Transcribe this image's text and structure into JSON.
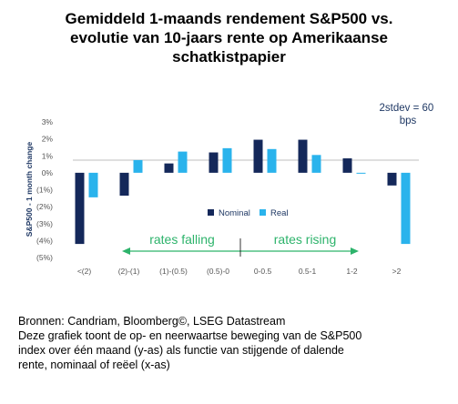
{
  "title": {
    "lines": [
      "Gemiddeld 1-maands rendement S&P500 vs.",
      "evolutie van 10-jaars rente op Amerikaanse",
      "schatkistpapier"
    ]
  },
  "colors": {
    "nominal": "#14285a",
    "real": "#2ab3ec",
    "arrow": "#2db36b",
    "axis_text": "#1f3864",
    "tick_text": "#555555"
  },
  "chart_data": {
    "type": "bar",
    "categories": [
      "<(2)",
      "(2)-(1)",
      "(1)-(0.5)",
      "(0.5)-0",
      "0-0.5",
      "0.5-1",
      "1-2",
      ">2"
    ],
    "series": [
      {
        "name": "Nominal",
        "values": [
          -4.2,
          -1.35,
          0.55,
          1.2,
          1.95,
          1.95,
          0.85,
          -0.75
        ]
      },
      {
        "name": "Real",
        "values": [
          -1.45,
          0.75,
          1.25,
          1.45,
          1.4,
          1.05,
          -0.05,
          -4.2
        ]
      }
    ],
    "ylabel": "S&P500 - 1 month change",
    "ylim": [
      -5,
      3
    ],
    "yticks": [
      "3%",
      "2%",
      "1%",
      "0%",
      "(1%)",
      "(2%)",
      "(3%)",
      "(4%)",
      "(5%)"
    ],
    "annotation": "2stdev = 60\nbps",
    "annotation_lines": [
      "2stdev = 60",
      "bps"
    ],
    "arrow_labels": {
      "left": "rates falling",
      "right": "rates rising"
    },
    "legend": [
      "Nominal",
      "Real"
    ],
    "legend_position": "bottom-right",
    "grid": false
  },
  "footer": {
    "lines": [
      "Bronnen: Candriam, Bloomberg©, LSEG Datastream",
      "Deze grafiek toont de op- en neerwaartse beweging van de S&P500",
      "index over één maand (y-as) als functie van stijgende of dalende",
      "rente, nominaal of reëel (x-as)"
    ]
  }
}
